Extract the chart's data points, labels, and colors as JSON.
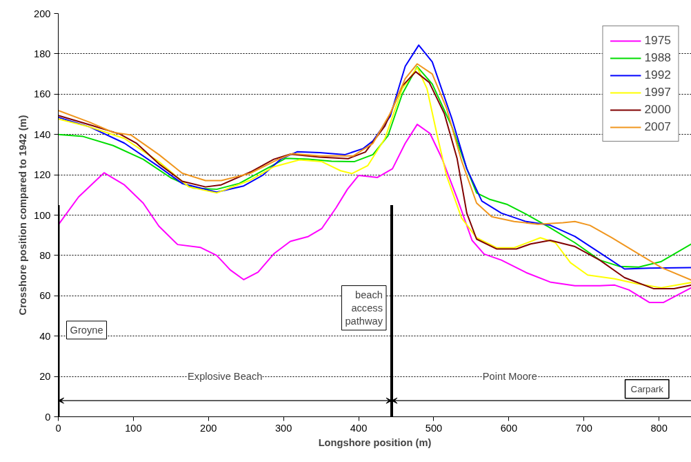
{
  "chart_data": {
    "type": "line",
    "xlabel": "Longshore position (m)",
    "ylabel": "Crosshore position compared to 1942 (m)",
    "xlim": [
      0,
      843
    ],
    "ylim": [
      0,
      200
    ],
    "xticks": [
      0,
      100,
      200,
      300,
      400,
      500,
      600,
      700,
      800
    ],
    "yticks": [
      0,
      20,
      40,
      60,
      80,
      100,
      120,
      140,
      160,
      180,
      200
    ],
    "grid": "y",
    "legend": "top right",
    "line_style": "solid",
    "series": [
      {
        "name": "1975",
        "color": "#ff00ff",
        "x": [
          1,
          27,
          61,
          88,
          113,
          134,
          159,
          189,
          211,
          229,
          247,
          266,
          287,
          309,
          333,
          351,
          370,
          385,
          400,
          425,
          445,
          462,
          478,
          495,
          511,
          531,
          551,
          567,
          590,
          623,
          655,
          688,
          721,
          741,
          760,
          787,
          806,
          843
        ],
        "values": [
          95.7,
          109,
          121,
          115,
          106,
          94.5,
          85.4,
          84,
          80,
          72.8,
          68,
          71.7,
          80.8,
          87,
          89.4,
          93.4,
          103.7,
          112.8,
          119.7,
          118.7,
          123,
          135.6,
          145,
          140.5,
          128,
          108.5,
          87.5,
          80.7,
          77.7,
          71.5,
          66.8,
          65,
          65,
          65.3,
          62.9,
          56.7,
          56.7,
          64
        ]
      },
      {
        "name": "1988",
        "color": "#00dd00",
        "x": [
          0,
          33,
          73,
          113,
          150,
          180,
          211,
          241,
          272,
          303,
          333,
          364,
          394,
          419,
          439,
          458,
          478,
          498,
          524,
          544,
          557,
          574,
          597,
          623,
          655,
          688,
          721,
          747,
          773,
          803,
          843
        ],
        "values": [
          140,
          139,
          134.5,
          127.7,
          118.5,
          113.4,
          112.8,
          115.7,
          122,
          128.2,
          127.7,
          126.7,
          126.5,
          130,
          139.3,
          160,
          173.6,
          165,
          144,
          123,
          111,
          107.9,
          105.4,
          100.5,
          93.7,
          86.3,
          77.7,
          74.6,
          74.2,
          77,
          85.7
        ]
      },
      {
        "name": "1992",
        "color": "#0000ff",
        "x": [
          0,
          42,
          88,
          134,
          165,
          211,
          247,
          272,
          297,
          318,
          348,
          382,
          406,
          419,
          442,
          462,
          480,
          498,
          524,
          544,
          564,
          590,
          623,
          655,
          688,
          721,
          754,
          787,
          843
        ],
        "values": [
          148.5,
          143.7,
          135.7,
          124,
          115.7,
          111.4,
          114.5,
          119.7,
          128,
          131.4,
          131,
          130,
          133,
          136.8,
          149,
          173.8,
          184.3,
          176,
          148,
          123,
          107,
          101,
          96.8,
          95,
          89.4,
          81.4,
          73.3,
          73.7,
          74
        ]
      },
      {
        "name": "1997",
        "color": "#ffff00",
        "x": [
          0,
          42,
          88,
          134,
          174,
          211,
          256,
          287,
          321,
          351,
          376,
          391,
          412,
          435,
          458,
          478,
          491,
          504,
          517,
          537,
          557,
          584,
          607,
          642,
          662,
          682,
          705,
          741,
          770,
          803,
          843
        ],
        "values": [
          147.7,
          143.7,
          138,
          126.5,
          114,
          111,
          117.4,
          124,
          127.4,
          126.5,
          122,
          120.6,
          124.5,
          138,
          162.7,
          173.2,
          162.7,
          140.5,
          119.6,
          98.6,
          88.8,
          83.8,
          83.8,
          88.8,
          86.3,
          76.4,
          70.3,
          68.4,
          66,
          64,
          66.6
        ]
      },
      {
        "name": "2000",
        "color": "#800000",
        "x": [
          0,
          42,
          82,
          104,
          134,
          165,
          196,
          217,
          256,
          287,
          309,
          348,
          386,
          409,
          435,
          458,
          476,
          494,
          514,
          531,
          544,
          557,
          584,
          610,
          629,
          655,
          688,
          721,
          754,
          793,
          820,
          843
        ],
        "values": [
          149.4,
          144.8,
          140.2,
          135.7,
          125.4,
          116.8,
          114,
          115,
          121.4,
          127.7,
          130.2,
          128.8,
          128,
          131.3,
          144.2,
          164,
          171.1,
          165.8,
          150.4,
          128.2,
          101,
          88.1,
          83.2,
          83.2,
          85.7,
          87.5,
          84.4,
          77.7,
          69,
          63.5,
          63.5,
          65.3
        ]
      },
      {
        "name": "2007",
        "color": "#f0961e",
        "x": [
          0,
          42,
          73,
          97,
          134,
          165,
          196,
          217,
          256,
          293,
          312,
          348,
          393,
          419,
          442,
          462,
          478,
          498,
          517,
          537,
          557,
          577,
          607,
          639,
          672,
          688,
          708,
          737,
          770,
          803,
          843
        ],
        "values": [
          151.9,
          146,
          141,
          139.7,
          130,
          120.8,
          117.1,
          117.1,
          120.8,
          127.7,
          130.5,
          129.4,
          129.4,
          135.6,
          150.4,
          167.7,
          175,
          170,
          153,
          127,
          106,
          99.2,
          96.8,
          95.5,
          96.2,
          96.8,
          94.9,
          88.8,
          81.4,
          74,
          67.8
        ]
      }
    ],
    "ref_lines": [
      {
        "axis": "x",
        "value": 0,
        "label": "Groyne",
        "color": "#000000"
      },
      {
        "axis": "x",
        "value": 444,
        "label": "beach access pathway",
        "color": "#000000"
      }
    ],
    "annotations": [
      "Explosive Beach",
      "Point Moore",
      "Carpark"
    ]
  }
}
